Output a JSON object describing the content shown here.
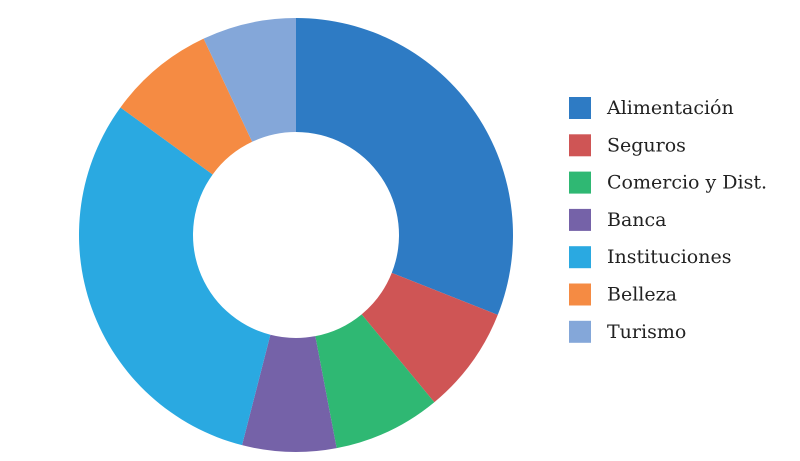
{
  "chart_data": {
    "type": "pie",
    "donut": true,
    "legend": "right",
    "categories": [
      "Alimentación",
      "Seguros",
      "Comercio y Dist.",
      "Banca",
      "Instituciones",
      "Belleza",
      "Turismo"
    ],
    "values": [
      31,
      8,
      8,
      7,
      31,
      8,
      7
    ],
    "colors": [
      "#2e7bc4",
      "#cf5555",
      "#2fb873",
      "#7562a8",
      "#2aa9e1",
      "#f58b43",
      "#84a7d9"
    ]
  }
}
